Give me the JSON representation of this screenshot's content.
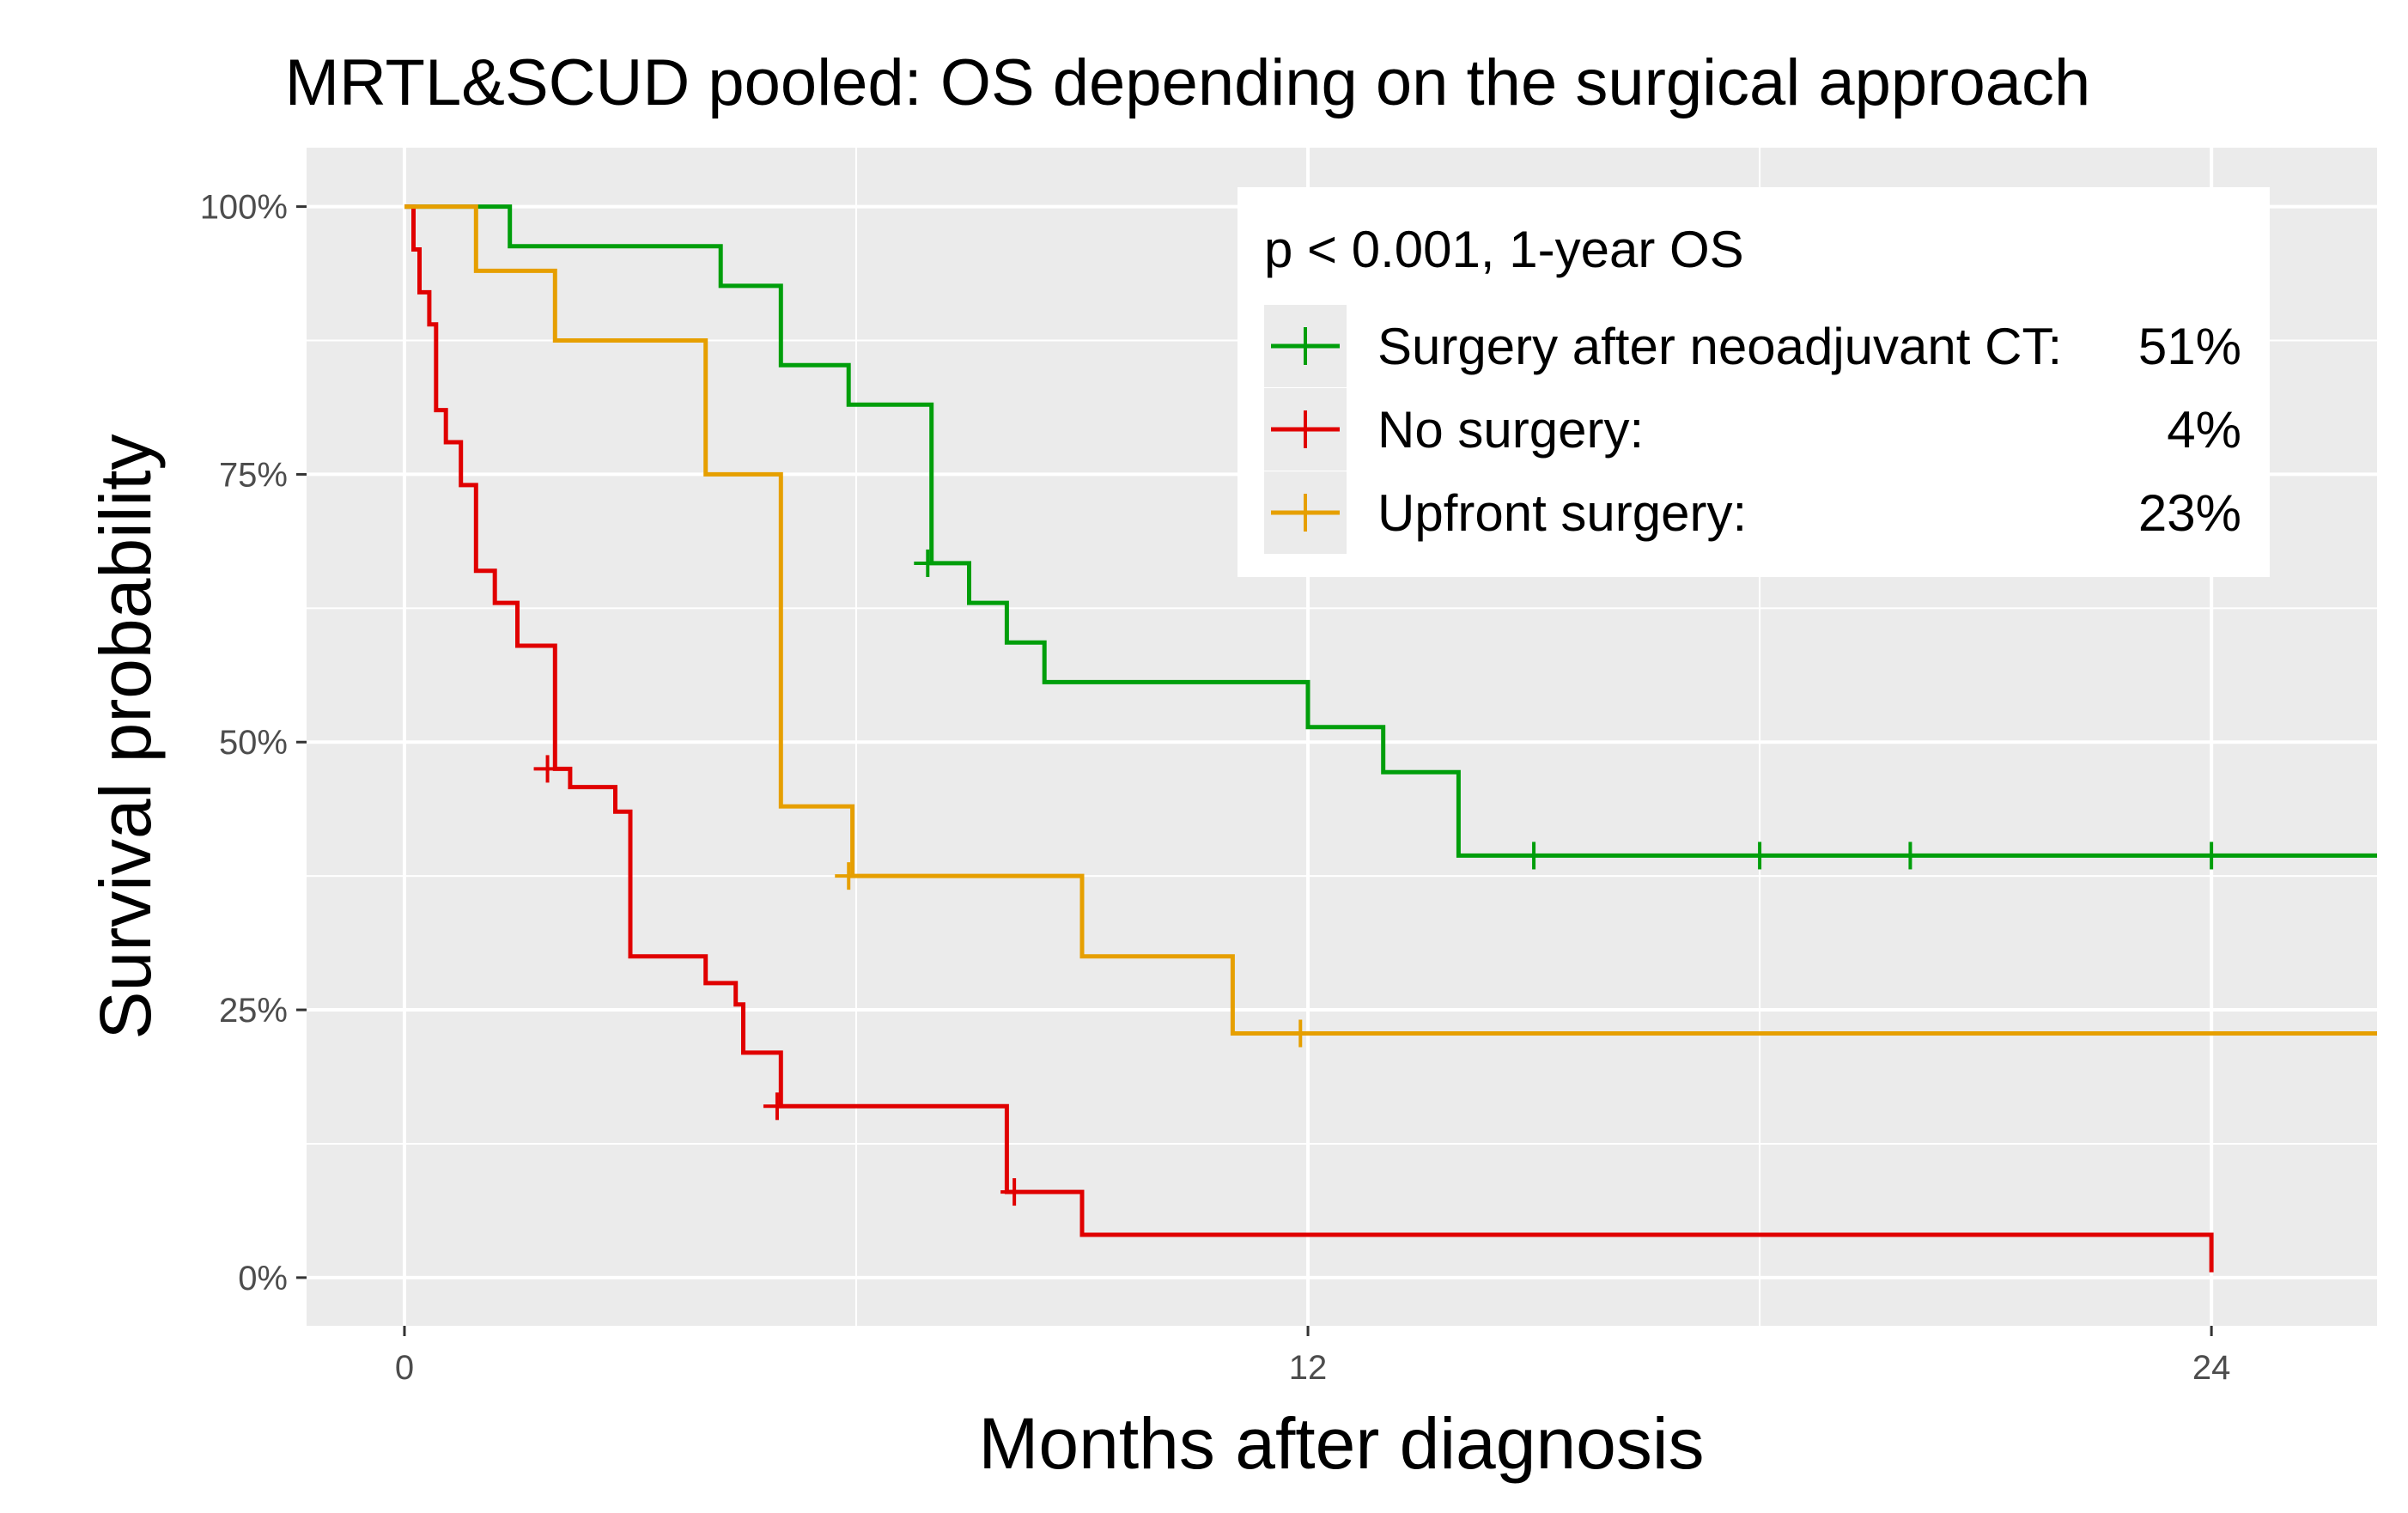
{
  "chart_data": {
    "type": "line",
    "subtype": "kaplan-meier step",
    "title": "MRTL&SCUD pooled: OS depending on the surgical approach",
    "xlabel": "Months after diagnosis",
    "ylabel": "Survival probability",
    "xlim": [
      -1.3,
      26.2
    ],
    "ylim": [
      -0.045,
      1.055
    ],
    "x_ticks": [
      0,
      12,
      24
    ],
    "x_tick_labels": [
      "0",
      "12",
      "24"
    ],
    "y_ticks": [
      0,
      0.25,
      0.5,
      0.75,
      1.0
    ],
    "y_tick_labels": [
      "0%",
      "25%",
      "50%",
      "75%",
      "100%"
    ],
    "grid": true,
    "legend": {
      "title": "p < 0.001, 1-year OS",
      "position": "top-right",
      "entries": [
        {
          "series": "Surgery after neoadjuvant CT",
          "label": "Surgery after neoadjuvant CT:",
          "value": "51%"
        },
        {
          "series": "No surgery",
          "label": "No surgery:",
          "value": "4%"
        },
        {
          "series": "Upfront surgery",
          "label": "Upfront surgery:",
          "value": "23%"
        }
      ]
    },
    "series": [
      {
        "name": "Surgery after neoadjuvant CT",
        "color": "#009E0B",
        "steps": [
          [
            0,
            1.0
          ],
          [
            1.4,
            0.963
          ],
          [
            4.2,
            0.926
          ],
          [
            5.0,
            0.852
          ],
          [
            5.9,
            0.815
          ],
          [
            7.0,
            0.667
          ],
          [
            7.5,
            0.63
          ],
          [
            8.0,
            0.593
          ],
          [
            8.5,
            0.556
          ],
          [
            12.0,
            0.514
          ],
          [
            13.0,
            0.472
          ],
          [
            14.0,
            0.394
          ],
          [
            26.2,
            0.394
          ]
        ],
        "censored": [
          [
            6.95,
            0.667
          ],
          [
            15.0,
            0.394
          ],
          [
            18.0,
            0.394
          ],
          [
            20.0,
            0.394
          ],
          [
            24.0,
            0.394
          ]
        ]
      },
      {
        "name": "No surgery",
        "color": "#E00000",
        "steps": [
          [
            0,
            1.0
          ],
          [
            0.12,
            0.96
          ],
          [
            0.2,
            0.92
          ],
          [
            0.33,
            0.89
          ],
          [
            0.42,
            0.81
          ],
          [
            0.55,
            0.78
          ],
          [
            0.75,
            0.74
          ],
          [
            0.95,
            0.66
          ],
          [
            1.2,
            0.63
          ],
          [
            1.5,
            0.59
          ],
          [
            2.0,
            0.475
          ],
          [
            2.2,
            0.458
          ],
          [
            2.8,
            0.435
          ],
          [
            3.0,
            0.3
          ],
          [
            4.0,
            0.275
          ],
          [
            4.4,
            0.255
          ],
          [
            4.5,
            0.21
          ],
          [
            5.0,
            0.16
          ],
          [
            8.0,
            0.08
          ],
          [
            9.0,
            0.04
          ],
          [
            24.0,
            0.04
          ],
          [
            24.0,
            0.005
          ]
        ],
        "censored": [
          [
            1.9,
            0.475
          ],
          [
            4.95,
            0.16
          ],
          [
            8.1,
            0.08
          ]
        ]
      },
      {
        "name": "Upfront surgery",
        "color": "#E69F00",
        "steps": [
          [
            0,
            1.0
          ],
          [
            0.95,
            0.94
          ],
          [
            2.0,
            0.875
          ],
          [
            4.0,
            0.75
          ],
          [
            5.0,
            0.44
          ],
          [
            5.95,
            0.375
          ],
          [
            9.0,
            0.3
          ],
          [
            11.0,
            0.228
          ],
          [
            26.2,
            0.228
          ]
        ],
        "censored": [
          [
            5.9,
            0.375
          ],
          [
            11.9,
            0.228
          ]
        ]
      }
    ]
  }
}
